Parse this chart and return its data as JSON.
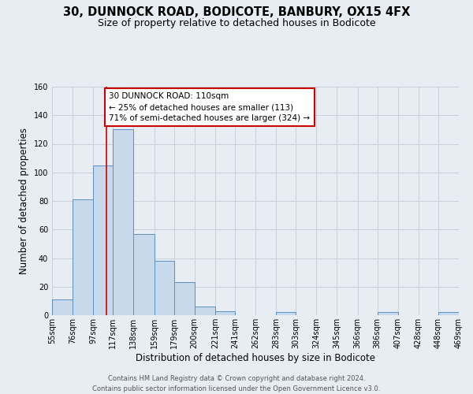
{
  "title": "30, DUNNOCK ROAD, BODICOTE, BANBURY, OX15 4FX",
  "subtitle": "Size of property relative to detached houses in Bodicote",
  "xlabel": "Distribution of detached houses by size in Bodicote",
  "ylabel": "Number of detached properties",
  "footer_line1": "Contains HM Land Registry data © Crown copyright and database right 2024.",
  "footer_line2": "Contains public sector information licensed under the Open Government Licence v3.0.",
  "bin_edges": [
    55,
    76,
    97,
    117,
    138,
    159,
    179,
    200,
    221,
    241,
    262,
    283,
    303,
    324,
    345,
    366,
    386,
    407,
    428,
    448,
    469
  ],
  "bin_labels": [
    "55sqm",
    "76sqm",
    "97sqm",
    "117sqm",
    "138sqm",
    "159sqm",
    "179sqm",
    "200sqm",
    "221sqm",
    "241sqm",
    "262sqm",
    "283sqm",
    "303sqm",
    "324sqm",
    "345sqm",
    "366sqm",
    "386sqm",
    "407sqm",
    "428sqm",
    "448sqm",
    "469sqm"
  ],
  "bar_heights": [
    11,
    81,
    105,
    130,
    57,
    38,
    23,
    6,
    3,
    0,
    0,
    2,
    0,
    0,
    0,
    0,
    2,
    0,
    0,
    2
  ],
  "bar_color": "#c9d9ec",
  "bar_edge_color": "#5a8fc0",
  "grid_color": "#c8d0dc",
  "background_color": "#e8edf4",
  "vline_x": 110,
  "vline_color": "#cc0000",
  "annotation_line1": "30 DUNNOCK ROAD: 110sqm",
  "annotation_line2": "← 25% of detached houses are smaller (113)",
  "annotation_line3": "71% of semi-detached houses are larger (324) →",
  "annotation_box_color": "#cc0000",
  "ylim": [
    0,
    160
  ],
  "yticks": [
    0,
    20,
    40,
    60,
    80,
    100,
    120,
    140,
    160
  ],
  "title_fontsize": 10.5,
  "subtitle_fontsize": 9,
  "axis_label_fontsize": 8.5,
  "tick_fontsize": 7,
  "annotation_fontsize": 7.5,
  "footer_fontsize": 6
}
